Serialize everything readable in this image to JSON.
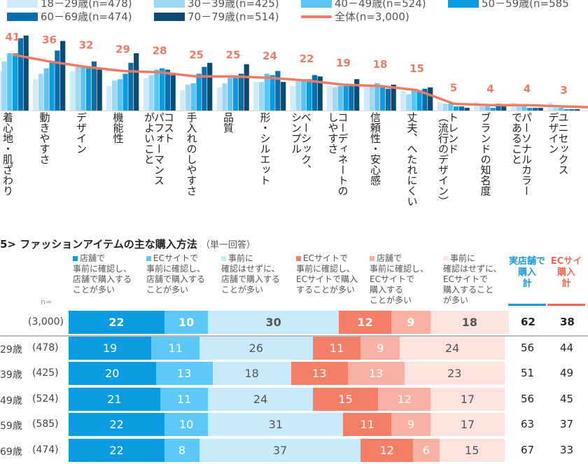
{
  "chart_data": [
    {
      "type": "bar+line",
      "legend": [
        "18－29歳(n=478)",
        "30－39歳(n=425)",
        "40－49歳(n=524)",
        "50－59歳(n=585",
        "60－69歳(n=474)",
        "70－79歳(n=514)",
        "全体(n=3,000)"
      ],
      "colors": [
        "#cfeaf8",
        "#9fd8f5",
        "#5bc4f5",
        "#0a9be0",
        "#0a6fa8",
        "#0b4a72",
        "#ee7b66"
      ],
      "categories": [
        "着心地・肌ざわり",
        "動きやすさ",
        "デザイン",
        "機能性",
        "コスト\nパフォーマンス\nがよいこと",
        "手入れのしやすさ",
        "品質",
        "形・シルエット",
        "ベーシック、\nシンプル",
        "コーディネートの\nしやすさ",
        "信頼性・安心感",
        "丈夫、へたれにくい",
        "トレンド\n（流行のデザイン）",
        "ブランドの知名度",
        "パーソナルカラー\nであること",
        "ユニセックス\nデザイン"
      ],
      "series": [
        {
          "name": "18－29歳(n=478)",
          "values": [
            29,
            23,
            29,
            18,
            24,
            15,
            17,
            21,
            18,
            18,
            18,
            14,
            6,
            6,
            6,
            6
          ]
        },
        {
          "name": "30－39歳(n=425)",
          "values": [
            36,
            27,
            32,
            22,
            26,
            19,
            20,
            21,
            22,
            17,
            18,
            12,
            5,
            3,
            3,
            2
          ]
        },
        {
          "name": "40－49歳(n=524)",
          "values": [
            42,
            31,
            32,
            23,
            30,
            20,
            24,
            27,
            23,
            18,
            20,
            15,
            5,
            3,
            3,
            2
          ]
        },
        {
          "name": "50－59歳(n=585",
          "values": [
            42,
            35,
            31,
            27,
            31,
            27,
            24,
            26,
            23,
            18,
            17,
            15,
            3,
            2,
            2,
            1
          ]
        },
        {
          "name": "60－69歳(n=474)",
          "values": [
            53,
            44,
            36,
            35,
            30,
            32,
            27,
            29,
            26,
            18,
            16,
            16,
            3,
            5,
            2,
            1
          ]
        },
        {
          "name": "70－79歳(n=514)",
          "values": [
            55,
            51,
            30,
            42,
            26,
            35,
            34,
            21,
            25,
            23,
            19,
            17,
            2,
            3,
            2,
            1
          ]
        },
        {
          "name": "全体(n=3,000)",
          "values": [
            41,
            36,
            32,
            29,
            28,
            25,
            25,
            24,
            22,
            19,
            18,
            15,
            5,
            4,
            4,
            3
          ]
        }
      ]
    },
    {
      "type": "stacked-bar",
      "title": "5> ファッションアイテムの主な購入方法",
      "subtitle": "（単一回答）",
      "n_label": "n=",
      "legend": [
        "店舗で\n事前に確認し、\n店舗で購入する\nことが多い",
        "ECサイトで\n事前に確認し、\n店舗で購入する\nことが多い",
        "事前に\n確認はせずに、\n店舗で購入する\nことが多い",
        "ECサイトで\n事前に確認し、\nECサイトで購入\nすることが多い",
        "店舗で\n事前に確認し、\nECサイトで\n購入する\nことが多い",
        "事前に\n確認はせずに、\nECサイトで\n購入すること\nが多い"
      ],
      "colors": [
        "#0a9be0",
        "#5bc8f8",
        "#c8ebfb",
        "#f47e66",
        "#f9b1a3",
        "#fde3de"
      ],
      "totals_headers": [
        "実店舗で\n購入\n計",
        "ECサイ\n購入\n計"
      ],
      "totals_colors": [
        "#1a9ad8",
        "#ee6a50"
      ],
      "rows": [
        {
          "label": "",
          "n": "(3,000)",
          "values": [
            22,
            10,
            30,
            12,
            9,
            18
          ],
          "totals": [
            "62",
            "38"
          ]
        },
        {
          "label": "29歳",
          "n": "(478)",
          "values": [
            19,
            11,
            26,
            11,
            9,
            24
          ],
          "totals": [
            "56",
            "44"
          ]
        },
        {
          "label": "39歳",
          "n": "(425)",
          "values": [
            20,
            13,
            18,
            13,
            13,
            23
          ],
          "totals": [
            "51",
            "49"
          ]
        },
        {
          "label": "49歳",
          "n": "(524)",
          "values": [
            21,
            11,
            24,
            15,
            12,
            17
          ],
          "totals": [
            "56",
            "45"
          ]
        },
        {
          "label": "59歳",
          "n": "(585)",
          "values": [
            22,
            10,
            31,
            11,
            9,
            17
          ],
          "totals": [
            "63",
            "37"
          ]
        },
        {
          "label": "69歳",
          "n": "(474)",
          "values": [
            22,
            8,
            37,
            12,
            6,
            15
          ],
          "totals": [
            "67",
            "33"
          ]
        }
      ]
    }
  ]
}
